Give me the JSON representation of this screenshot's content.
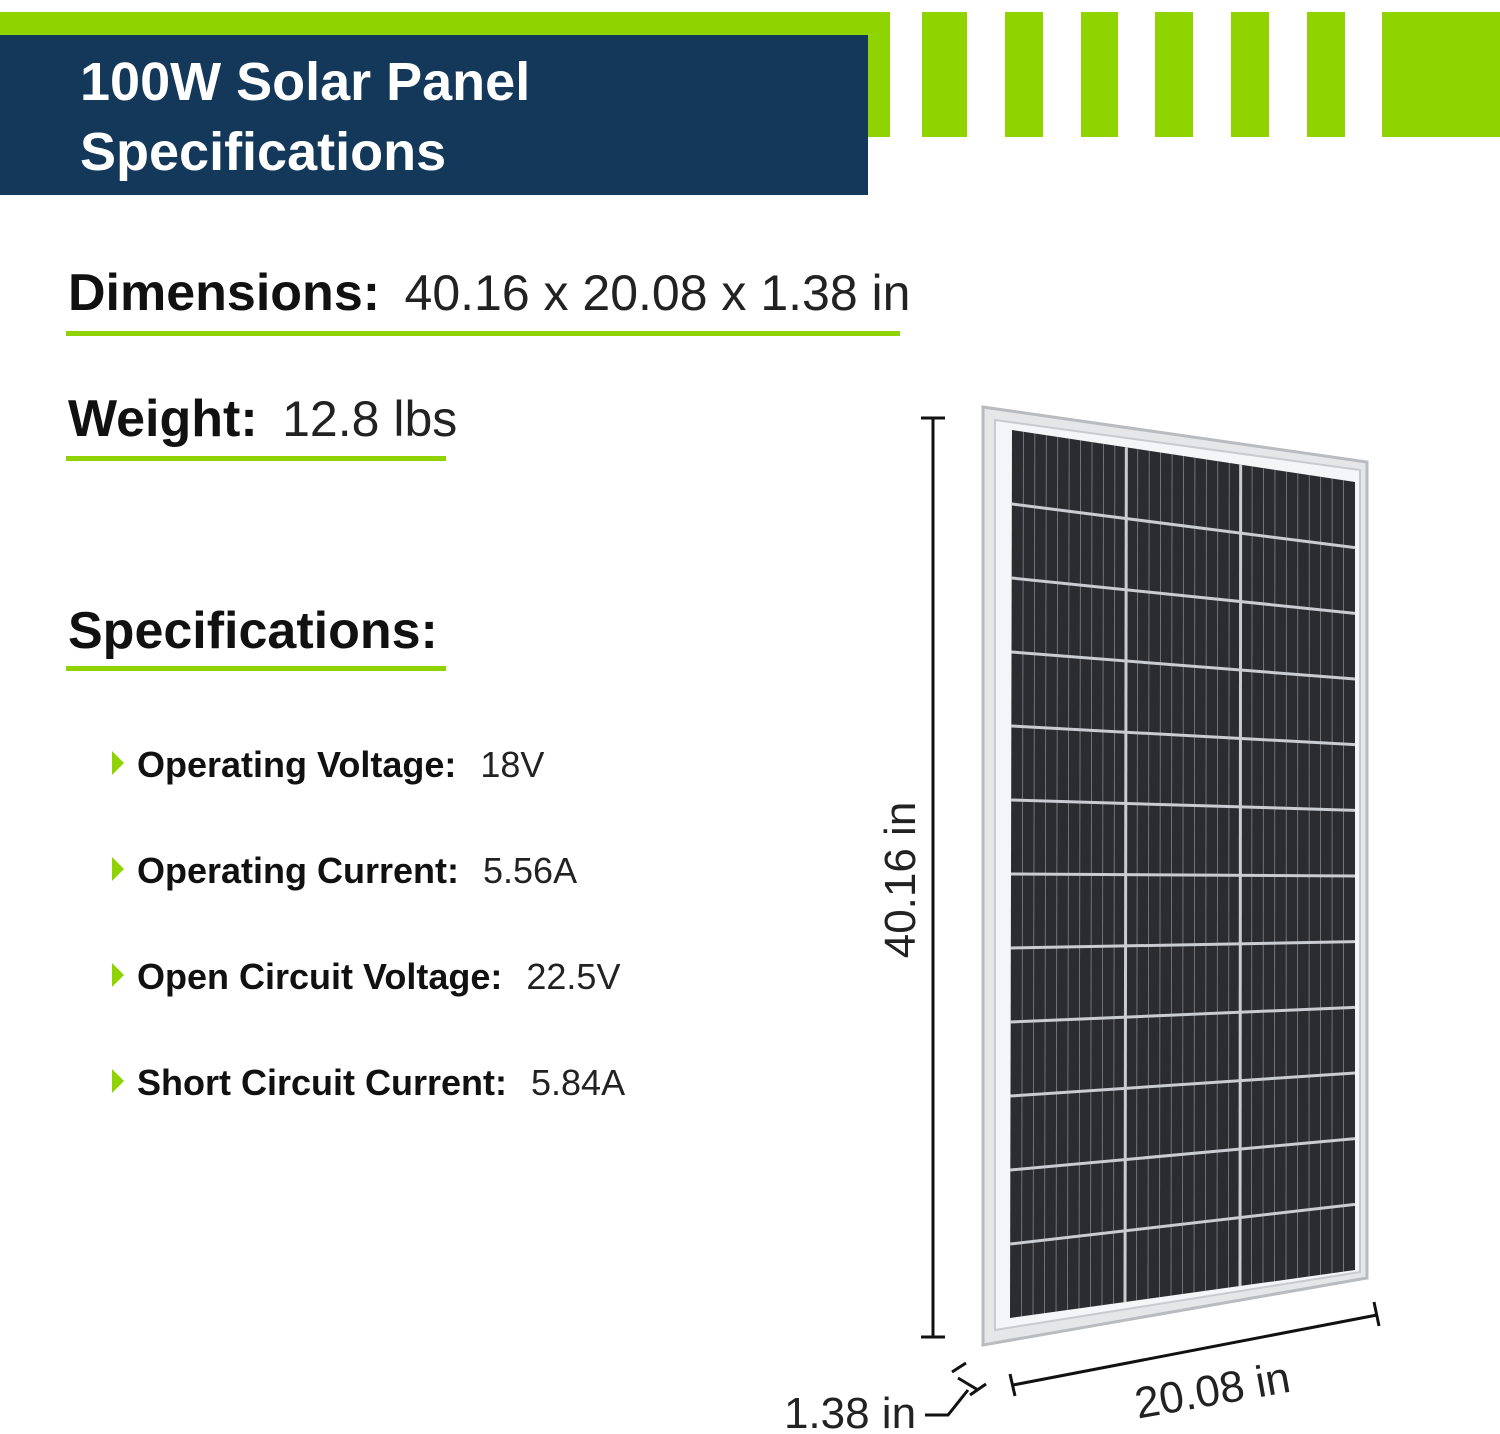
{
  "header": {
    "title_lines": [
      "100W Solar Panel",
      "Specifications"
    ]
  },
  "dimensions": {
    "label": "Dimensions:",
    "value": "40.16 x 20.08 x 1.38 in"
  },
  "weight": {
    "label": "Weight:",
    "value": "12.8 lbs"
  },
  "specifications": {
    "heading": "Specifications:",
    "items": [
      {
        "label": "Operating Voltage:",
        "value": "18V"
      },
      {
        "label": "Operating Current:",
        "value": "5.56A"
      },
      {
        "label": "Open Circuit Voltage:",
        "value": "22.5V"
      },
      {
        "label": "Short Circuit Current:",
        "value": "5.84A"
      }
    ]
  },
  "panel_dimensions": {
    "height": "40.16 in",
    "width": "20.08 in",
    "depth": "1.38 in"
  }
}
